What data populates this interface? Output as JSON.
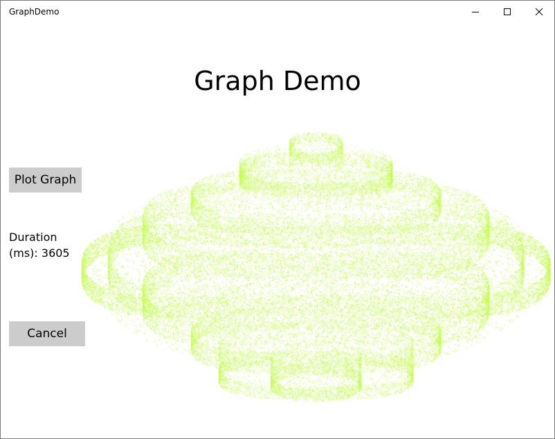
{
  "window": {
    "title": "GraphDemo",
    "controls": {
      "minimize_icon": "minimize-icon",
      "maximize_icon": "maximize-icon",
      "close_icon": "close-icon"
    }
  },
  "main": {
    "page_title": "Graph Demo",
    "plot_button_label": "Plot Graph",
    "duration_label": "Duration",
    "duration_value_text": "(ms): 3605",
    "duration_ms": 3605,
    "cancel_button_label": "Cancel"
  },
  "graph": {
    "color": "#c2ff4d"
  }
}
